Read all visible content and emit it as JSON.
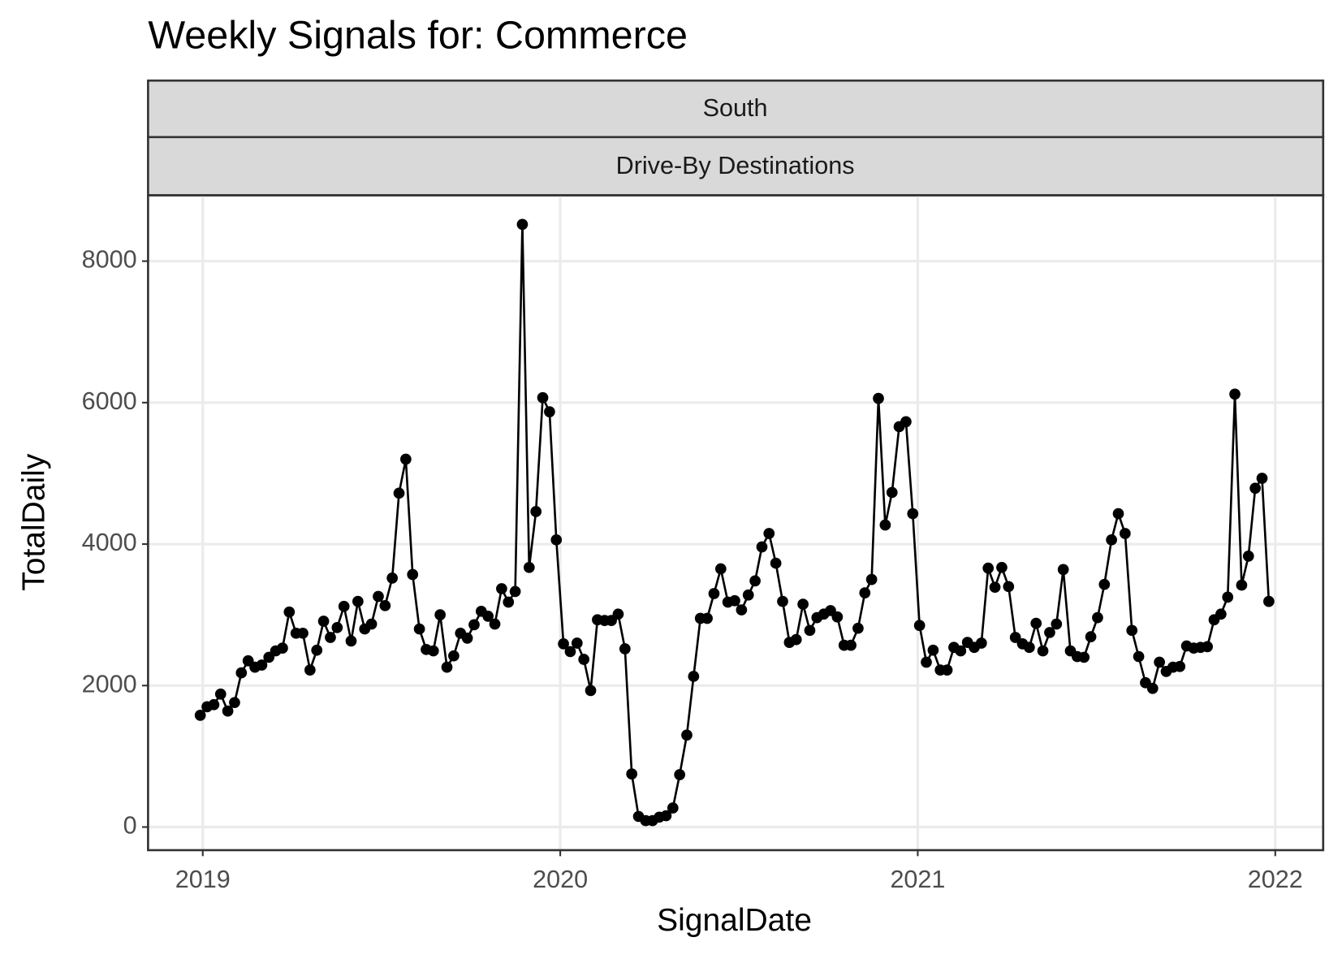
{
  "chart_data": {
    "type": "line",
    "title": "Weekly Signals for: Commerce",
    "strips": [
      "South",
      "Drive-By Destinations"
    ],
    "x_label": "SignalDate",
    "y_label": "TotalDaily",
    "color": "#000000",
    "grid": true,
    "xlim": [
      2018.847,
      2022.134
    ],
    "xticks": [
      2019,
      2020,
      2021,
      2022
    ],
    "ylim": [
      -327,
      8931
    ],
    "yticks": [
      0,
      2000,
      4000,
      6000,
      8000
    ],
    "x": [
      2018.993,
      2019.012,
      2019.031,
      2019.05,
      2019.07,
      2019.089,
      2019.108,
      2019.127,
      2019.146,
      2019.165,
      2019.185,
      2019.204,
      2019.223,
      2019.242,
      2019.261,
      2019.28,
      2019.3,
      2019.319,
      2019.338,
      2019.357,
      2019.376,
      2019.395,
      2019.415,
      2019.434,
      2019.453,
      2019.472,
      2019.491,
      2019.51,
      2019.53,
      2019.549,
      2019.568,
      2019.587,
      2019.606,
      2019.625,
      2019.645,
      2019.664,
      2019.683,
      2019.702,
      2019.721,
      2019.74,
      2019.759,
      2019.779,
      2019.798,
      2019.817,
      2019.836,
      2019.855,
      2019.874,
      2019.894,
      2019.913,
      2019.932,
      2019.951,
      2019.97,
      2019.989,
      2020.009,
      2020.028,
      2020.047,
      2020.066,
      2020.085,
      2020.104,
      2020.124,
      2020.143,
      2020.162,
      2020.181,
      2020.2,
      2020.219,
      2020.239,
      2020.258,
      2020.277,
      2020.296,
      2020.315,
      2020.334,
      2020.354,
      2020.373,
      2020.392,
      2020.411,
      2020.43,
      2020.449,
      2020.469,
      2020.488,
      2020.507,
      2020.526,
      2020.545,
      2020.564,
      2020.584,
      2020.603,
      2020.622,
      2020.641,
      2020.66,
      2020.679,
      2020.698,
      2020.718,
      2020.737,
      2020.756,
      2020.775,
      2020.794,
      2020.813,
      2020.833,
      2020.852,
      2020.871,
      2020.89,
      2020.909,
      2020.928,
      2020.948,
      2020.967,
      2020.986,
      2021.005,
      2021.024,
      2021.043,
      2021.063,
      2021.082,
      2021.101,
      2021.12,
      2021.139,
      2021.158,
      2021.178,
      2021.197,
      2021.216,
      2021.235,
      2021.254,
      2021.273,
      2021.293,
      2021.312,
      2021.331,
      2021.35,
      2021.369,
      2021.388,
      2021.407,
      2021.427,
      2021.446,
      2021.465,
      2021.484,
      2021.503,
      2021.522,
      2021.542,
      2021.561,
      2021.58,
      2021.599,
      2021.618,
      2021.637,
      2021.657,
      2021.676,
      2021.695,
      2021.714,
      2021.733,
      2021.752,
      2021.772,
      2021.791,
      2021.81,
      2021.829,
      2021.848,
      2021.867,
      2021.887,
      2021.906,
      2021.925,
      2021.944,
      2021.963,
      2021.982
    ],
    "values": [
      1580,
      1700,
      1730,
      1880,
      1640,
      1760,
      2180,
      2350,
      2260,
      2290,
      2400,
      2490,
      2530,
      3040,
      2740,
      2740,
      2220,
      2500,
      2910,
      2680,
      2820,
      3120,
      2630,
      3190,
      2800,
      2870,
      3260,
      3130,
      3520,
      4720,
      5200,
      3570,
      2800,
      2510,
      2490,
      3000,
      2260,
      2420,
      2740,
      2670,
      2860,
      3050,
      2980,
      2870,
      3370,
      3180,
      3330,
      8520,
      3670,
      4460,
      6070,
      5870,
      4060,
      2590,
      2480,
      2600,
      2370,
      1930,
      2930,
      2920,
      2920,
      3010,
      2520,
      750,
      150,
      90,
      90,
      140,
      160,
      270,
      740,
      1300,
      2130,
      2950,
      2950,
      3300,
      3650,
      3180,
      3200,
      3070,
      3280,
      3480,
      3960,
      4150,
      3730,
      3190,
      2610,
      2650,
      3150,
      2780,
      2960,
      3010,
      3060,
      2970,
      2570,
      2570,
      2810,
      3310,
      3500,
      6060,
      4270,
      4730,
      5660,
      5730,
      4430,
      2850,
      2330,
      2500,
      2220,
      2220,
      2540,
      2490,
      2610,
      2540,
      2600,
      3660,
      3390,
      3670,
      3400,
      2680,
      2590,
      2540,
      2880,
      2490,
      2750,
      2870,
      3640,
      2490,
      2410,
      2400,
      2690,
      2960,
      3430,
      4060,
      4430,
      4150,
      2780,
      2410,
      2040,
      1960,
      2330,
      2200,
      2260,
      2270,
      2560,
      2530,
      2540,
      2550,
      2930,
      3010,
      3250,
      6120,
      3420,
      3830,
      4790,
      4930,
      3190
    ]
  }
}
